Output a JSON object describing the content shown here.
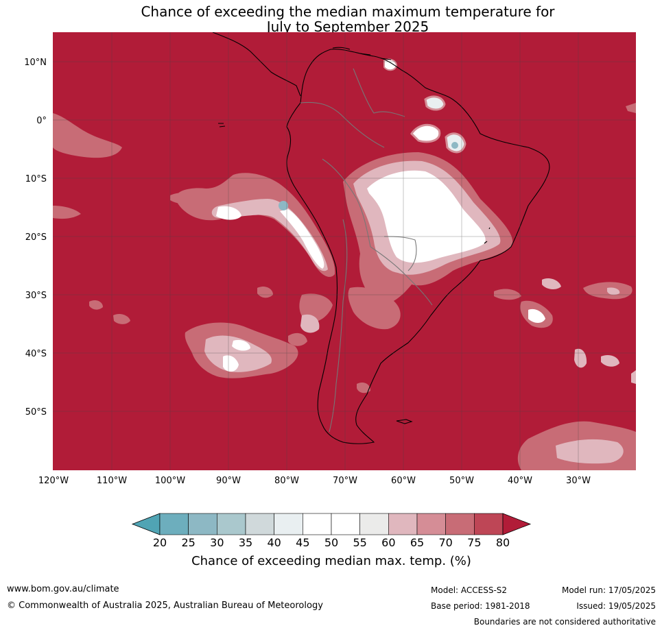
{
  "title_line1": "Chance of exceeding the median maximum temperature for",
  "title_line2": "July to September 2025",
  "map": {
    "lat_labels": [
      "10°N",
      "0°",
      "10°S",
      "20°S",
      "30°S",
      "40°S",
      "50°S"
    ],
    "lon_labels": [
      "120°W",
      "110°W",
      "100°W",
      "90°W",
      "80°W",
      "70°W",
      "60°W",
      "50°W",
      "40°W",
      "30°W"
    ],
    "background_color": "#b11c38"
  },
  "colorbar": {
    "ticks": [
      "20",
      "25",
      "30",
      "35",
      "40",
      "45",
      "50",
      "55",
      "60",
      "65",
      "70",
      "75",
      "80"
    ],
    "colors": [
      "#50a4b4",
      "#6daebd",
      "#8db8c4",
      "#aac8cd",
      "#d0d9db",
      "#e9eff1",
      "#ffffff",
      "#ffffff",
      "#ebebea",
      "#e0b7be",
      "#d58d96",
      "#c86c76",
      "#be4656",
      "#b11c38"
    ],
    "label": "Chance of exceeding median max. temp. (%)"
  },
  "footer": {
    "website": "www.bom.gov.au/climate",
    "copyright": "© Commonwealth of Australia 2025, Australian Bureau of Meteorology",
    "model": "Model: ACCESS-S2",
    "base_period": "Base period: 1981-2018",
    "model_run": "Model run: 17/05/2025",
    "issued": "Issued: 19/05/2025",
    "boundaries_note": "Boundaries are not considered authoritative"
  }
}
